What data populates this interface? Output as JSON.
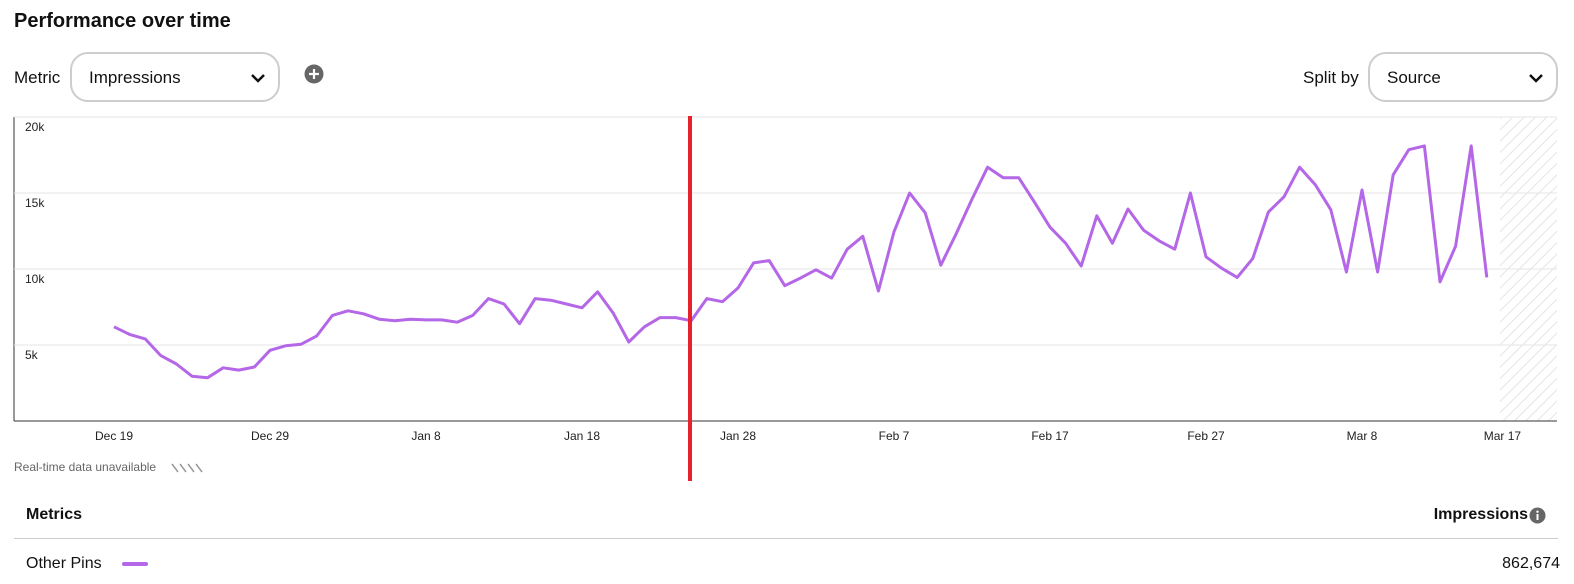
{
  "header": {
    "title": "Performance over time"
  },
  "controls": {
    "metric_label": "Metric",
    "metric_value": "Impressions",
    "split_label": "Split by",
    "split_value": "Source"
  },
  "chart_data": {
    "type": "line",
    "categories": [
      "Dec 19",
      null,
      null,
      null,
      null,
      null,
      null,
      null,
      null,
      null,
      "Dec 29",
      null,
      null,
      null,
      null,
      null,
      null,
      null,
      null,
      null,
      "Jan 8",
      null,
      null,
      null,
      null,
      null,
      null,
      null,
      null,
      null,
      "Jan 18",
      null,
      null,
      null,
      null,
      null,
      null,
      null,
      null,
      null,
      "Jan 28",
      null,
      null,
      null,
      null,
      null,
      null,
      null,
      null,
      null,
      "Feb 7",
      null,
      null,
      null,
      null,
      null,
      null,
      null,
      null,
      null,
      "Feb 17",
      null,
      null,
      null,
      null,
      null,
      null,
      null,
      null,
      null,
      "Feb 27",
      null,
      null,
      null,
      null,
      null,
      null,
      null,
      null,
      null,
      "Mar 8",
      null,
      null,
      null,
      null,
      null,
      null,
      null,
      null,
      "Mar 17"
    ],
    "series": [
      {
        "name": "Other Pins",
        "color": "#b467e6",
        "values": [
          6200,
          5700,
          5400,
          4300,
          3750,
          2950,
          2850,
          3500,
          3350,
          3550,
          4650,
          4950,
          5050,
          5600,
          6950,
          7250,
          7050,
          6700,
          6600,
          6700,
          6650,
          6650,
          6500,
          6950,
          8050,
          7700,
          6400,
          8050,
          7950,
          7700,
          7450,
          8500,
          7100,
          5200,
          6200,
          6800,
          6800,
          6600,
          8050,
          7850,
          8750,
          10400,
          10550,
          8900,
          9400,
          9950,
          9400,
          11300,
          12150,
          8550,
          12450,
          15000,
          13700,
          10250,
          12350,
          14600,
          16700,
          16000,
          16000,
          14400,
          12750,
          11700,
          10200,
          13500,
          11700,
          13950,
          12550,
          11850,
          11300,
          15000,
          10800,
          10050,
          9450,
          10700,
          13750,
          14750,
          16700,
          15550,
          13900,
          9800,
          15200,
          9800,
          16200,
          17850,
          18100,
          9150,
          11500,
          18100,
          9450,
          null
        ]
      }
    ],
    "ylim": [
      0,
      20000
    ],
    "yticks": [
      {
        "value": 5000,
        "label": "5k"
      },
      {
        "value": 10000,
        "label": "10k"
      },
      {
        "value": 15000,
        "label": "15k"
      },
      {
        "value": 20000,
        "label": "20k"
      }
    ],
    "grid": true,
    "unavailable_note": "Real-time data unavailable"
  },
  "table": {
    "header": [
      "Metrics",
      "Impressions"
    ],
    "rows": [
      [
        "Other Pins",
        "862,674"
      ]
    ]
  }
}
